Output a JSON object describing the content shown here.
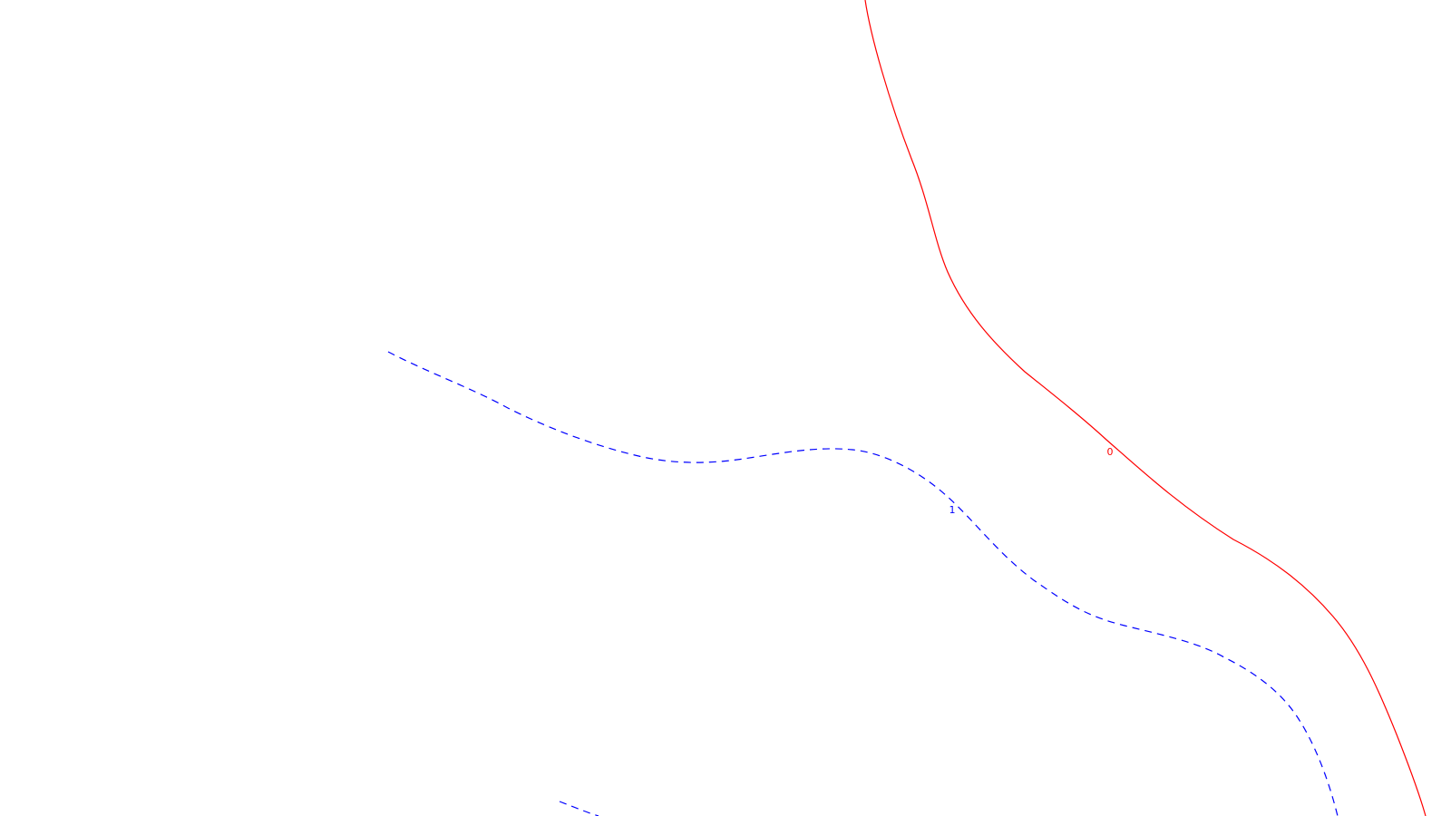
{
  "contours": [
    {
      "id": "contour-0",
      "label": "0",
      "color": "#ff0000",
      "style": "solid"
    },
    {
      "id": "contour-1",
      "label": "1",
      "color": "#0000ff",
      "style": "dashed"
    }
  ]
}
